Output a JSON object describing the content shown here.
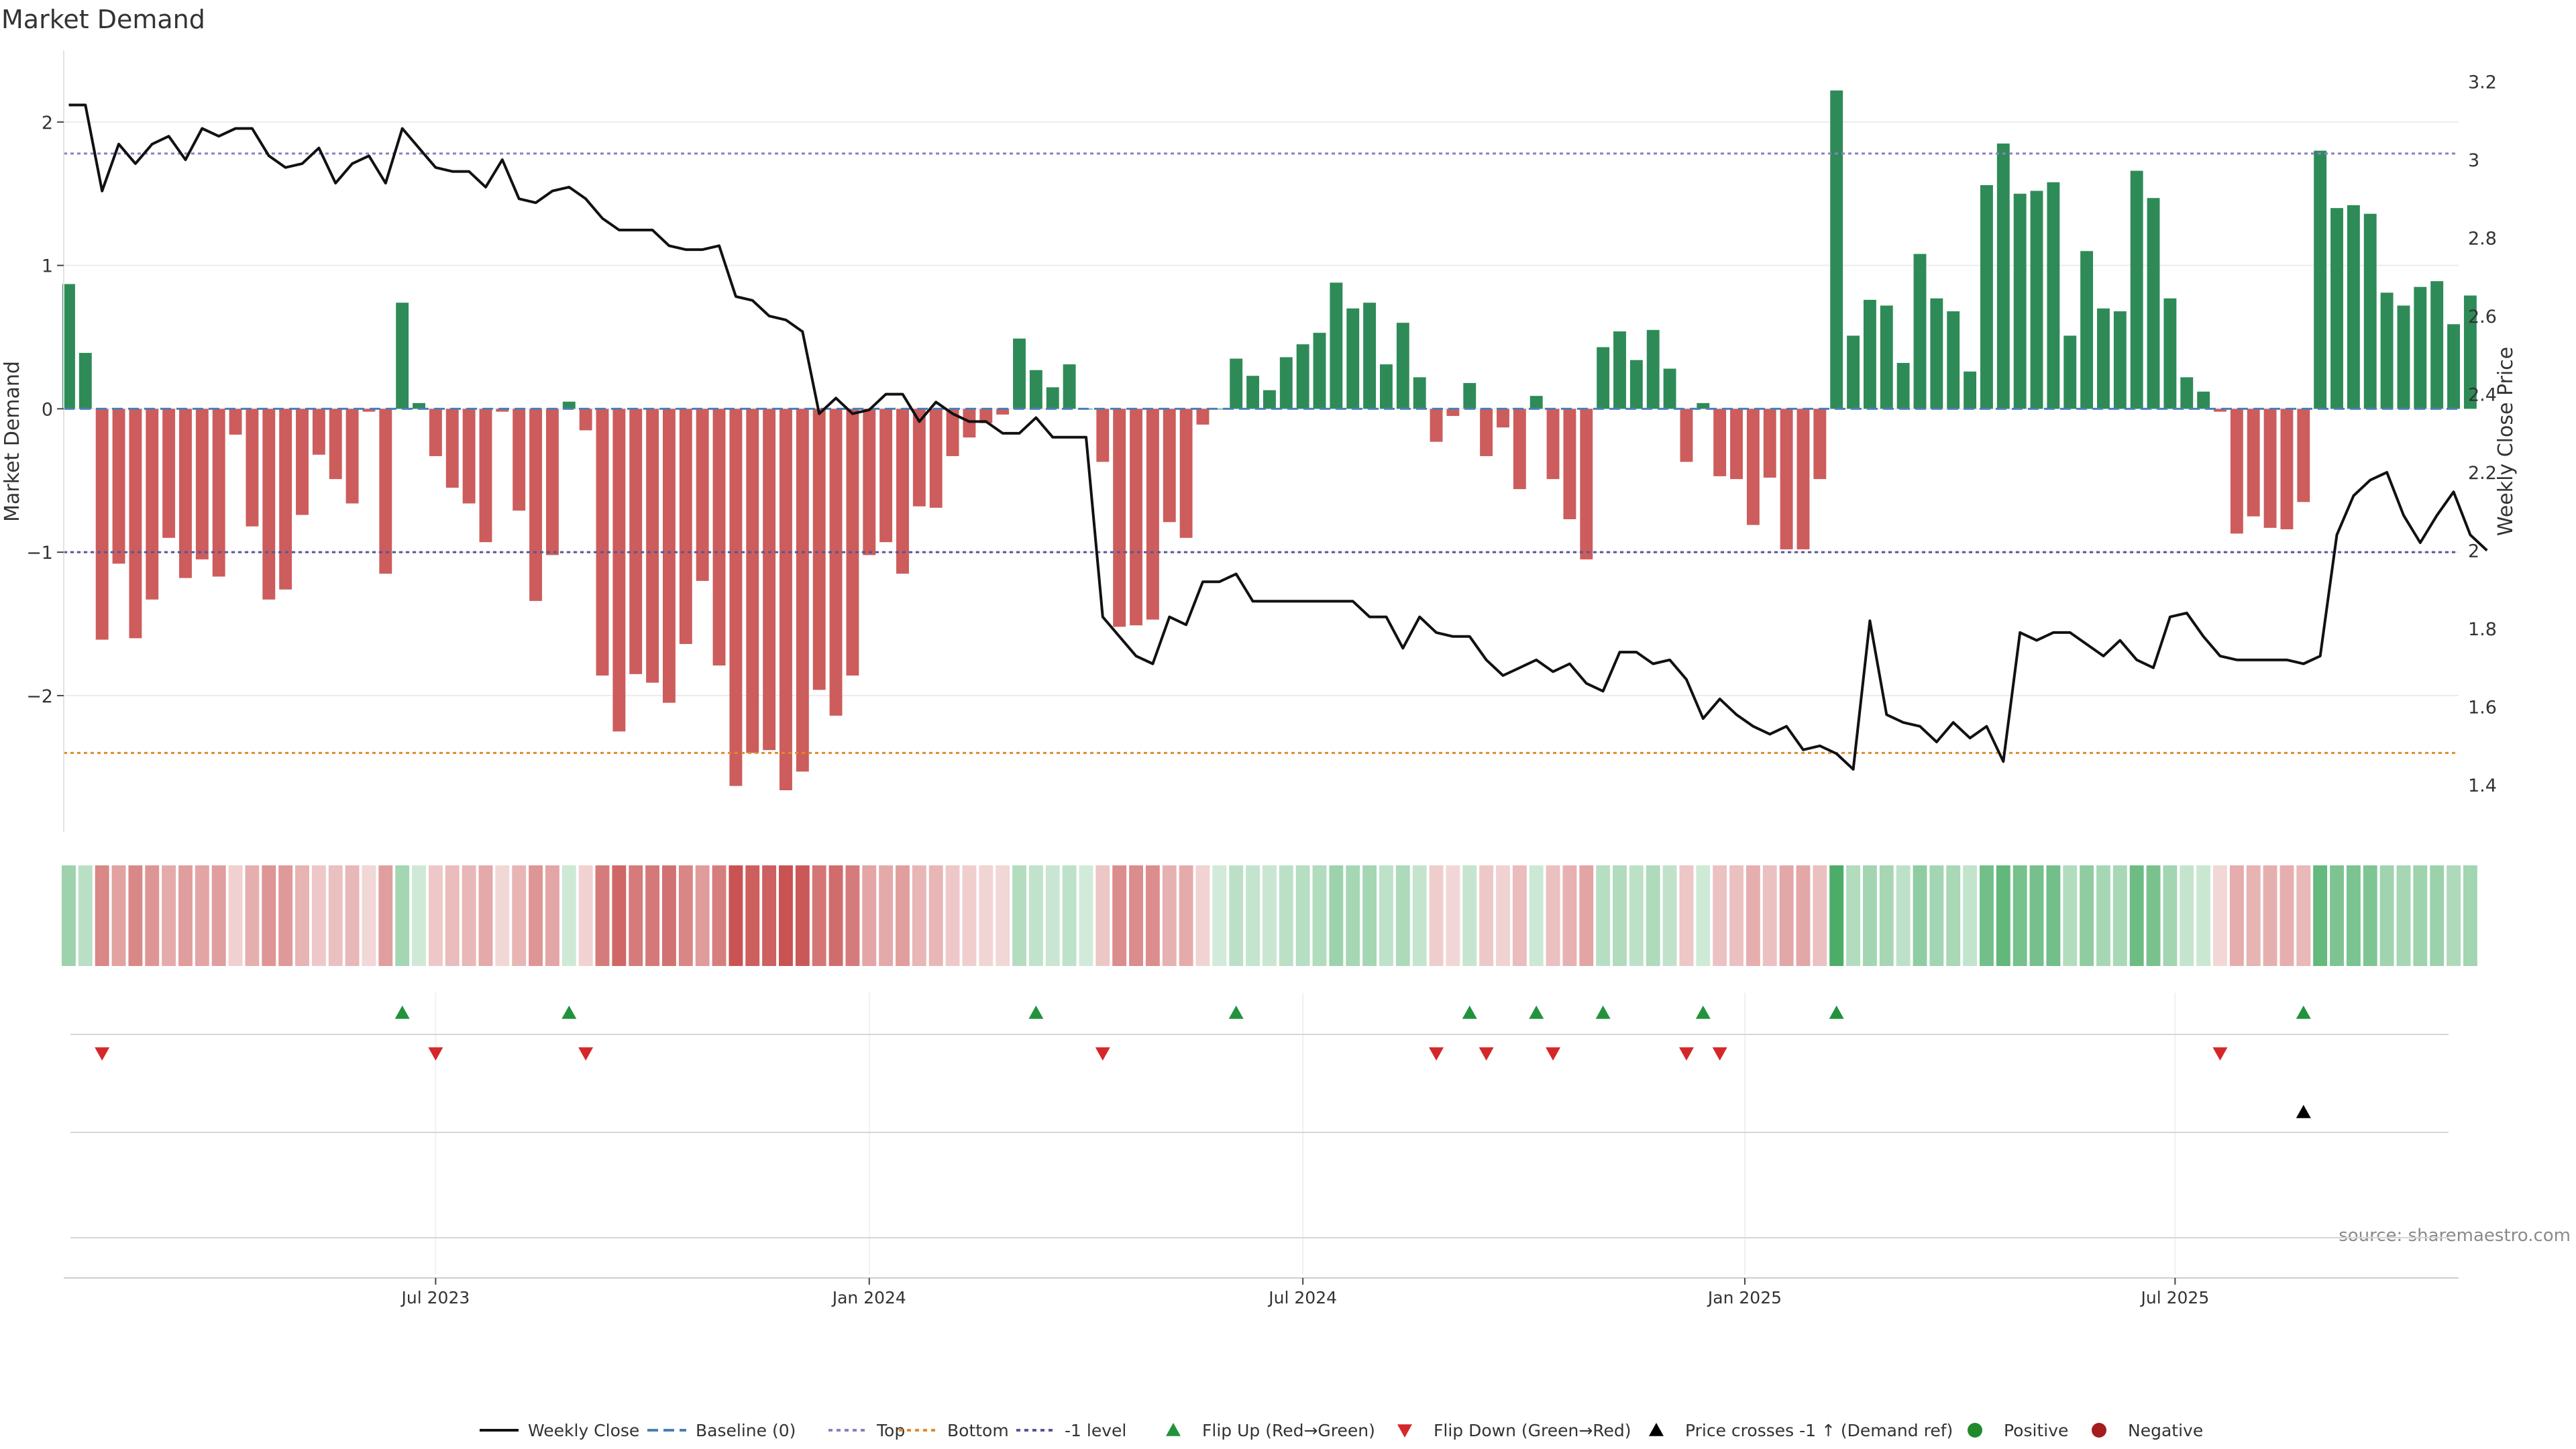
{
  "chart_data": {
    "type": "bar",
    "title": "Market Demand",
    "ylabel": "Market Demand",
    "y2label": "Weekly Close Price",
    "ylim": [
      -2.95,
      2.5
    ],
    "y_ticks": [
      -2,
      -1,
      0,
      1,
      2
    ],
    "y_tick_labels": [
      "−2",
      "−1",
      "0",
      "1",
      "2"
    ],
    "y2lim": [
      1.28,
      3.28
    ],
    "y2_ticks": [
      1.4,
      1.6,
      1.8,
      2.0,
      2.2,
      2.4,
      2.6,
      2.8,
      3.0,
      3.2
    ],
    "y2_tick_labels": [
      "1.4",
      "1.6",
      "1.8",
      "2",
      "2.2",
      "2.4",
      "2.6",
      "2.8",
      "3",
      "3.2"
    ],
    "x_week_range": [
      -0.3,
      143.3
    ],
    "x_ticks": [
      {
        "label": "Jul 2023",
        "week": 22
      },
      {
        "label": "Jan 2024",
        "week": 48
      },
      {
        "label": "Jul 2024",
        "week": 74
      },
      {
        "label": "Jan 2025",
        "week": 100.5
      },
      {
        "label": "Jul 2025",
        "week": 126.3
      }
    ],
    "reference_lines": {
      "top": 1.78,
      "bottom": -2.4,
      "minus_one": -1,
      "baseline": 0
    },
    "colors": {
      "positive": "#2e8b57",
      "negative": "#cd5c5c",
      "price": "#111111",
      "top_line": "#8a7fc0",
      "bottom_line": "#e08a2c",
      "minus_one_line": "#555599",
      "baseline": "#4a7fb5",
      "flip_up": "#23923d",
      "flip_down": "#d62728",
      "cross": "#000000",
      "dot_positive": "#1f8a2a",
      "dot_negative": "#a51c1c"
    },
    "demand_values": [
      0.87,
      0.39,
      -1.61,
      -1.08,
      -1.6,
      -1.33,
      -0.9,
      -1.18,
      -1.05,
      -1.17,
      -0.18,
      -0.82,
      -1.33,
      -1.26,
      -0.74,
      -0.32,
      -0.49,
      -0.66,
      -0.02,
      -1.15,
      0.74,
      0.04,
      -0.33,
      -0.55,
      -0.66,
      -0.93,
      -0.02,
      -0.71,
      -1.34,
      -1.02,
      0.05,
      -0.15,
      -1.86,
      -2.25,
      -1.85,
      -1.91,
      -2.05,
      -1.64,
      -1.2,
      -1.79,
      -2.63,
      -2.4,
      -2.38,
      -2.66,
      -2.53,
      -1.96,
      -2.14,
      -1.86,
      -1.02,
      -0.93,
      -1.15,
      -0.68,
      -0.69,
      -0.33,
      -0.2,
      -0.1,
      -0.04,
      0.49,
      0.27,
      0.15,
      0.31,
      0.0,
      -0.37,
      -1.52,
      -1.51,
      -1.47,
      -0.79,
      -0.9,
      -0.11,
      0.0,
      0.35,
      0.23,
      0.13,
      0.36,
      0.45,
      0.53,
      0.88,
      0.7,
      0.74,
      0.31,
      0.6,
      0.22,
      -0.23,
      -0.05,
      0.18,
      -0.33,
      -0.13,
      -0.56,
      0.09,
      -0.49,
      -0.77,
      -1.05,
      0.43,
      0.54,
      0.34,
      0.55,
      0.28,
      -0.37,
      0.04,
      -0.47,
      -0.49,
      -0.81,
      -0.48,
      -0.98,
      -0.98,
      -0.49,
      2.22,
      0.51,
      0.76,
      0.72,
      0.32,
      1.08,
      0.77,
      0.68,
      0.26,
      1.56,
      1.85,
      1.5,
      1.52,
      1.58,
      0.51,
      1.1,
      0.7,
      0.68,
      1.66,
      1.47,
      0.77,
      0.22,
      0.12,
      -0.02,
      -0.87,
      -0.75,
      -0.83,
      -0.84,
      -0.65,
      1.8,
      1.4,
      1.42,
      1.36,
      0.81,
      0.72,
      0.85,
      0.89,
      0.59,
      0.79
    ],
    "price_values": [
      3.14,
      3.14,
      2.92,
      3.04,
      2.99,
      3.04,
      3.06,
      3.0,
      3.08,
      3.06,
      3.08,
      3.08,
      3.01,
      2.98,
      2.99,
      3.03,
      2.94,
      2.99,
      3.01,
      2.94,
      3.08,
      3.03,
      2.98,
      2.97,
      2.97,
      2.93,
      3.0,
      2.9,
      2.89,
      2.92,
      2.93,
      2.9,
      2.85,
      2.82,
      2.82,
      2.82,
      2.78,
      2.77,
      2.77,
      2.78,
      2.65,
      2.64,
      2.6,
      2.59,
      2.56,
      2.35,
      2.39,
      2.35,
      2.36,
      2.4,
      2.4,
      2.33,
      2.38,
      2.35,
      2.33,
      2.33,
      2.3,
      2.3,
      2.34,
      2.29,
      2.29,
      2.29,
      1.83,
      1.78,
      1.73,
      1.71,
      1.83,
      1.81,
      1.92,
      1.92,
      1.94,
      1.87,
      1.87,
      1.87,
      1.87,
      1.87,
      1.87,
      1.87,
      1.83,
      1.83,
      1.75,
      1.83,
      1.79,
      1.78,
      1.78,
      1.72,
      1.68,
      1.7,
      1.72,
      1.69,
      1.71,
      1.66,
      1.64,
      1.74,
      1.74,
      1.71,
      1.72,
      1.67,
      1.57,
      1.62,
      1.58,
      1.55,
      1.53,
      1.55,
      1.49,
      1.5,
      1.48,
      1.44,
      1.82,
      1.58,
      1.56,
      1.55,
      1.51,
      1.56,
      1.52,
      1.55,
      1.46,
      1.79,
      1.77,
      1.79,
      1.79,
      1.76,
      1.73,
      1.77,
      1.72,
      1.7,
      1.83,
      1.84,
      1.78,
      1.73,
      1.72,
      1.72,
      1.72,
      1.72,
      1.71,
      1.73,
      2.04,
      2.14,
      2.18,
      2.2,
      2.09,
      2.02,
      2.09,
      2.15,
      2.04,
      2.0
    ],
    "flip_up_weeks": [
      20,
      30,
      58,
      70,
      84,
      88,
      92,
      98,
      106,
      134
    ],
    "flip_down_weeks": [
      2,
      22,
      31,
      62,
      82,
      85,
      89,
      97,
      99,
      129
    ],
    "cross_weeks": [
      134
    ],
    "legend": [
      {
        "key": "price",
        "label": "Weekly Close"
      },
      {
        "key": "baseline",
        "label": "Baseline (0)"
      },
      {
        "key": "top",
        "label": "Top"
      },
      {
        "key": "bottom",
        "label": "Bottom"
      },
      {
        "key": "minus_one",
        "label": "-1 level"
      },
      {
        "key": "flip_up",
        "label": "Flip Up (Red→Green)"
      },
      {
        "key": "flip_down",
        "label": "Flip Down (Green→Red)"
      },
      {
        "key": "cross",
        "label": "Price crosses -1 ↑ (Demand ref)"
      },
      {
        "key": "dot_positive",
        "label": "Positive"
      },
      {
        "key": "dot_negative",
        "label": "Negative"
      }
    ],
    "source": "source: sharemaestro.com"
  }
}
